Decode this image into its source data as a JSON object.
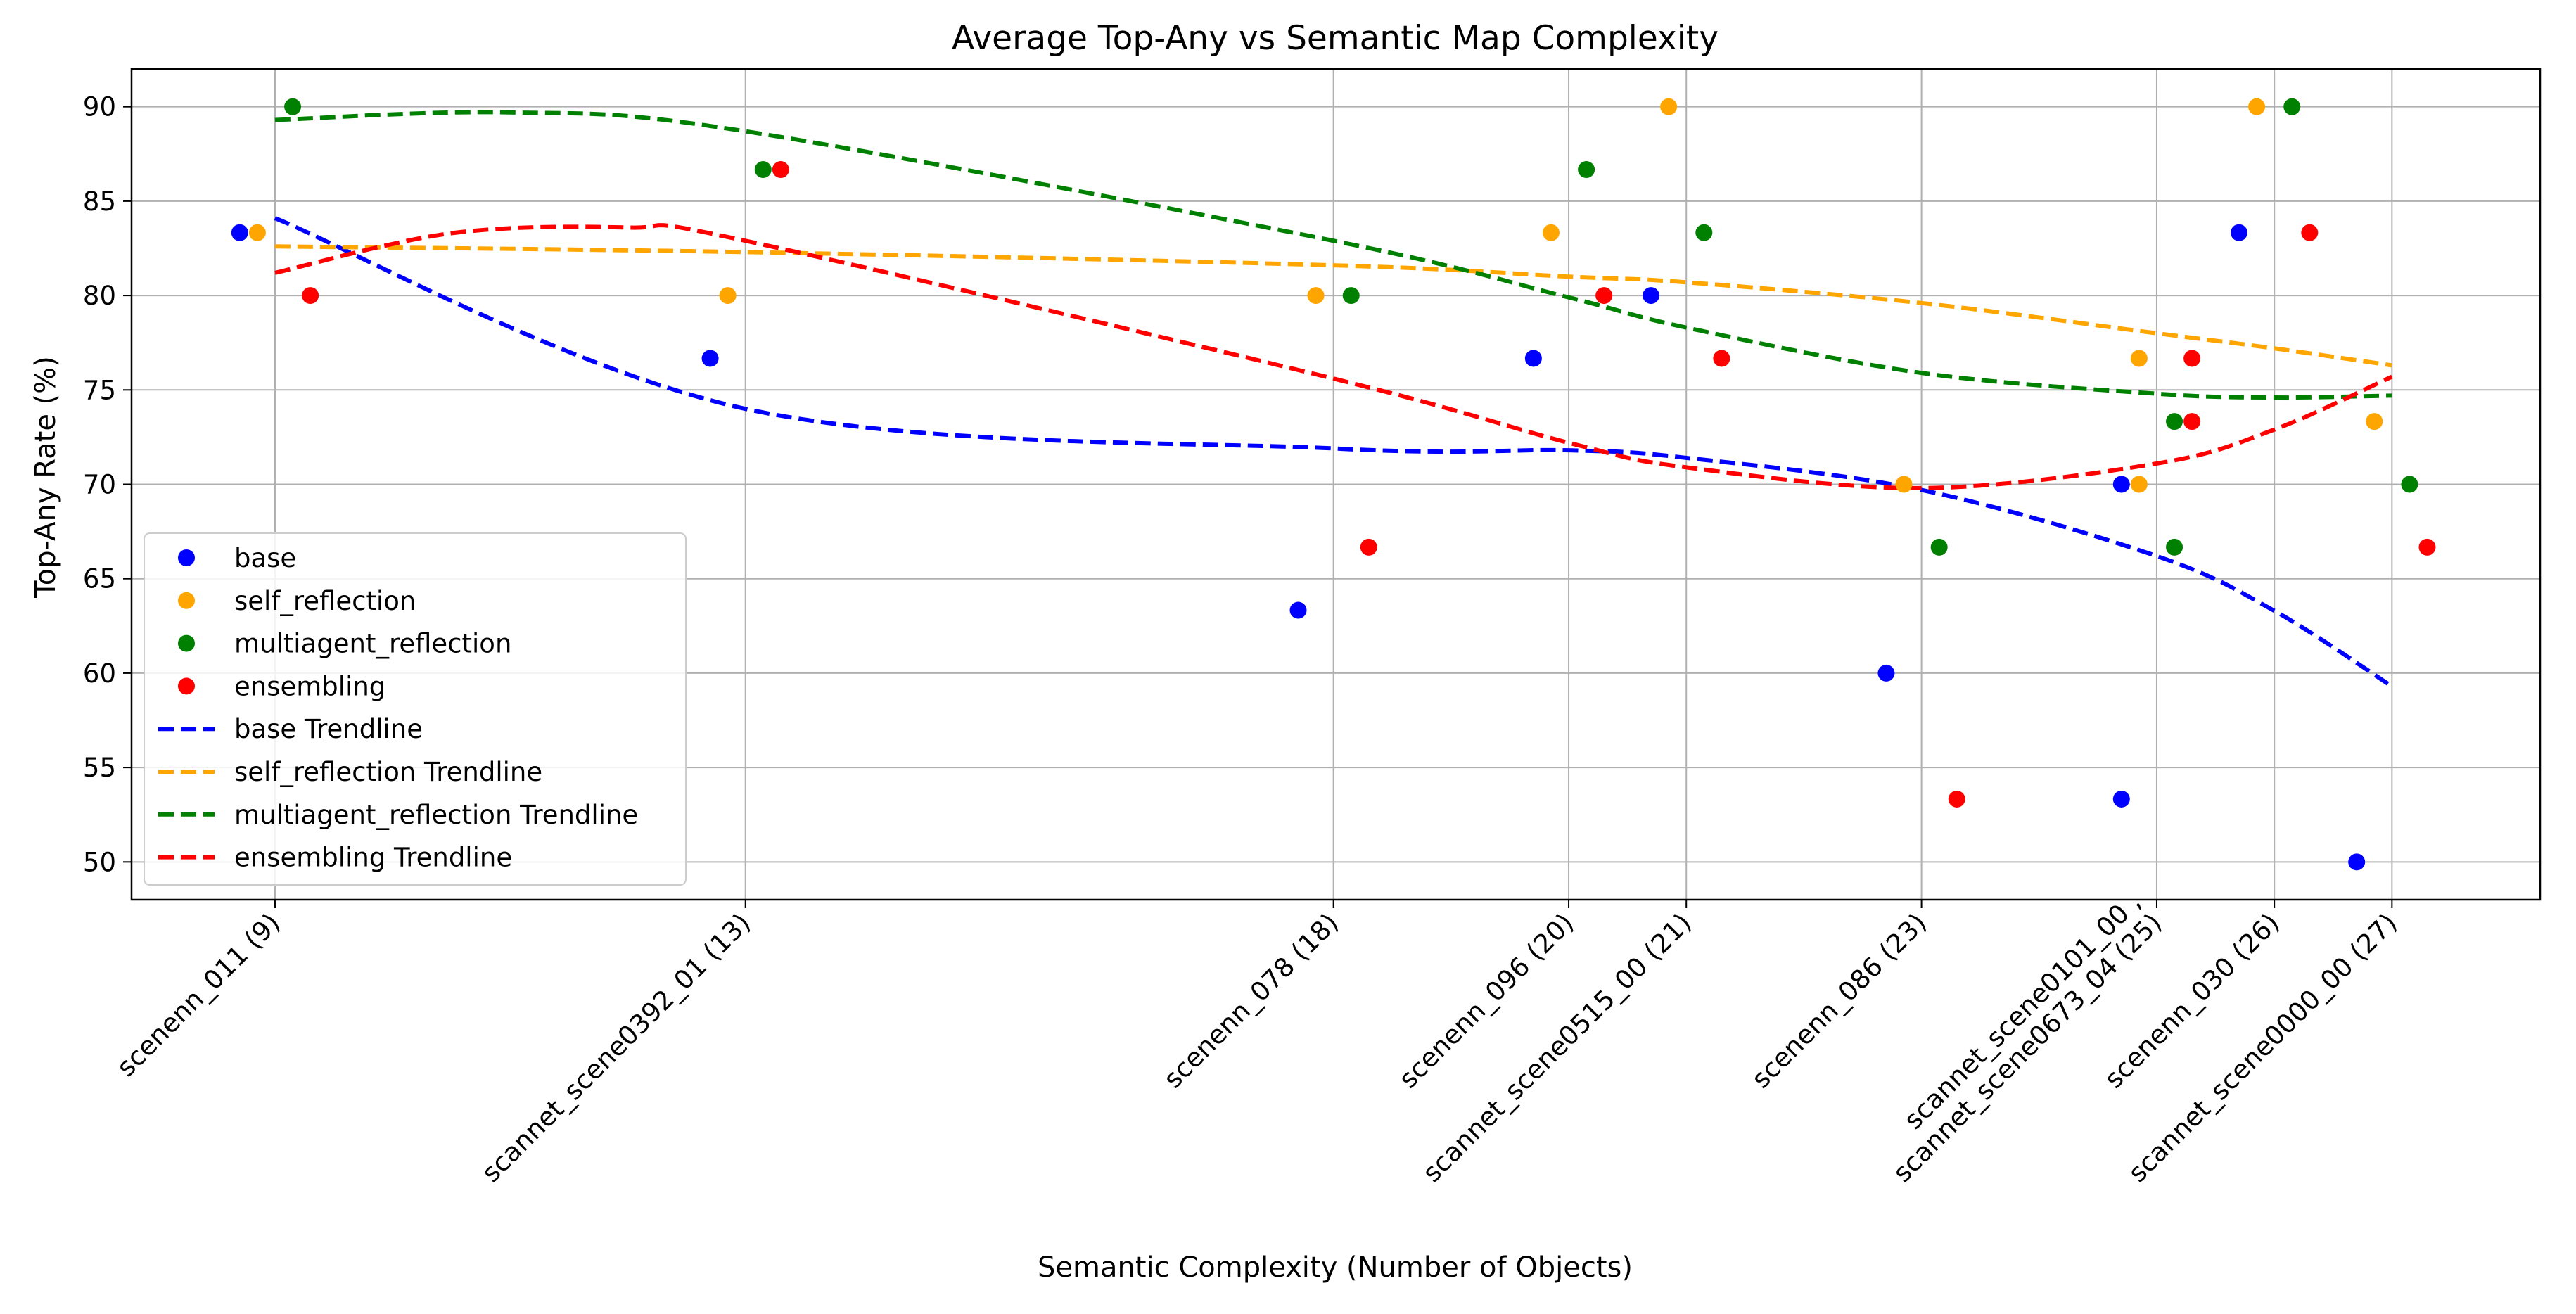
{
  "chart_data": {
    "type": "scatter",
    "title": "Average Top-Any vs Semantic Map Complexity",
    "xlabel": "Semantic Complexity (Number of Objects)",
    "ylabel": "Top-Any Rate (%)",
    "xlim": [
      7.78,
      28.26
    ],
    "ylim": [
      48,
      92
    ],
    "yticks": [
      50,
      55,
      60,
      65,
      70,
      75,
      80,
      85,
      90
    ],
    "grid": true,
    "legend_position": "center-left",
    "xticks": [
      {
        "x": 9,
        "lines": [
          "scenenn_011 (9)"
        ]
      },
      {
        "x": 13,
        "lines": [
          "scannet_scene0392_01 (13)"
        ]
      },
      {
        "x": 18,
        "lines": [
          "scenenn_078 (18)"
        ]
      },
      {
        "x": 20,
        "lines": [
          "scenenn_096 (20)"
        ]
      },
      {
        "x": 21,
        "lines": [
          "scannet_scene0515_00 (21)"
        ]
      },
      {
        "x": 23,
        "lines": [
          "scenenn_086 (23)"
        ]
      },
      {
        "x": 25,
        "lines": [
          "scannet_scene0101_00 ,",
          "scannet_scene0673_04 (25)"
        ]
      },
      {
        "x": 26,
        "lines": [
          "scenenn_030 (26)"
        ]
      },
      {
        "x": 27,
        "lines": [
          "scannet_scene0000_00 (27)"
        ]
      }
    ],
    "series": [
      {
        "name": "base",
        "color": "#0000ff",
        "offset": -0.3,
        "x": [
          9,
          13,
          18,
          20,
          21,
          23,
          25,
          25,
          26,
          27
        ],
        "y": [
          83.33,
          76.67,
          63.33,
          76.67,
          80,
          60,
          70,
          53.33,
          83.33,
          50
        ]
      },
      {
        "name": "self_reflection",
        "color": "#ffa500",
        "offset": -0.15,
        "x": [
          9,
          13,
          18,
          20,
          21,
          23,
          25,
          25,
          26,
          27
        ],
        "y": [
          83.33,
          80,
          80,
          83.33,
          90,
          70,
          76.67,
          70,
          90,
          73.33
        ]
      },
      {
        "name": "multiagent_reflection",
        "color": "#008000",
        "offset": 0.15,
        "x": [
          9,
          13,
          18,
          20,
          21,
          23,
          25,
          25,
          26,
          27
        ],
        "y": [
          90,
          86.67,
          80,
          86.67,
          83.33,
          66.67,
          73.33,
          66.67,
          90,
          70
        ]
      },
      {
        "name": "ensembling",
        "color": "#ff0000",
        "offset": 0.3,
        "x": [
          9,
          13,
          18,
          20,
          21,
          23,
          25,
          25,
          26,
          27
        ],
        "y": [
          80,
          86.67,
          66.67,
          80,
          76.67,
          53.33,
          76.67,
          73.33,
          83.33,
          66.67
        ]
      }
    ],
    "trendlines": [
      {
        "name": "base Trendline",
        "color": "#0000ff",
        "x": [
          9,
          13,
          18,
          20,
          21,
          23,
          25,
          26,
          27
        ],
        "y": [
          84.1,
          74.0,
          71.9,
          71.8,
          71.4,
          69.7,
          66.2,
          63.3,
          59.3
        ]
      },
      {
        "name": "self_reflection Trendline",
        "color": "#ffa500",
        "x": [
          9,
          13,
          18,
          20,
          21,
          23,
          25,
          26,
          27
        ],
        "y": [
          82.6,
          82.3,
          81.6,
          81.0,
          80.7,
          79.6,
          78.0,
          77.2,
          76.3
        ]
      },
      {
        "name": "multiagent_reflection Trendline",
        "color": "#008000",
        "x": [
          9,
          11,
          13,
          18,
          20,
          21,
          23,
          25,
          26,
          27
        ],
        "y": [
          89.3,
          89.7,
          88.7,
          82.9,
          79.9,
          78.3,
          75.9,
          74.8,
          74.6,
          74.7
        ]
      },
      {
        "name": "ensembling Trendline",
        "color": "#ff0000",
        "x": [
          9,
          10.5,
          12,
          13,
          18,
          20,
          21,
          23,
          25,
          26,
          27
        ],
        "y": [
          81.2,
          83.3,
          83.6,
          82.9,
          75.6,
          72.2,
          70.9,
          69.8,
          71.1,
          72.9,
          75.7
        ]
      }
    ]
  }
}
